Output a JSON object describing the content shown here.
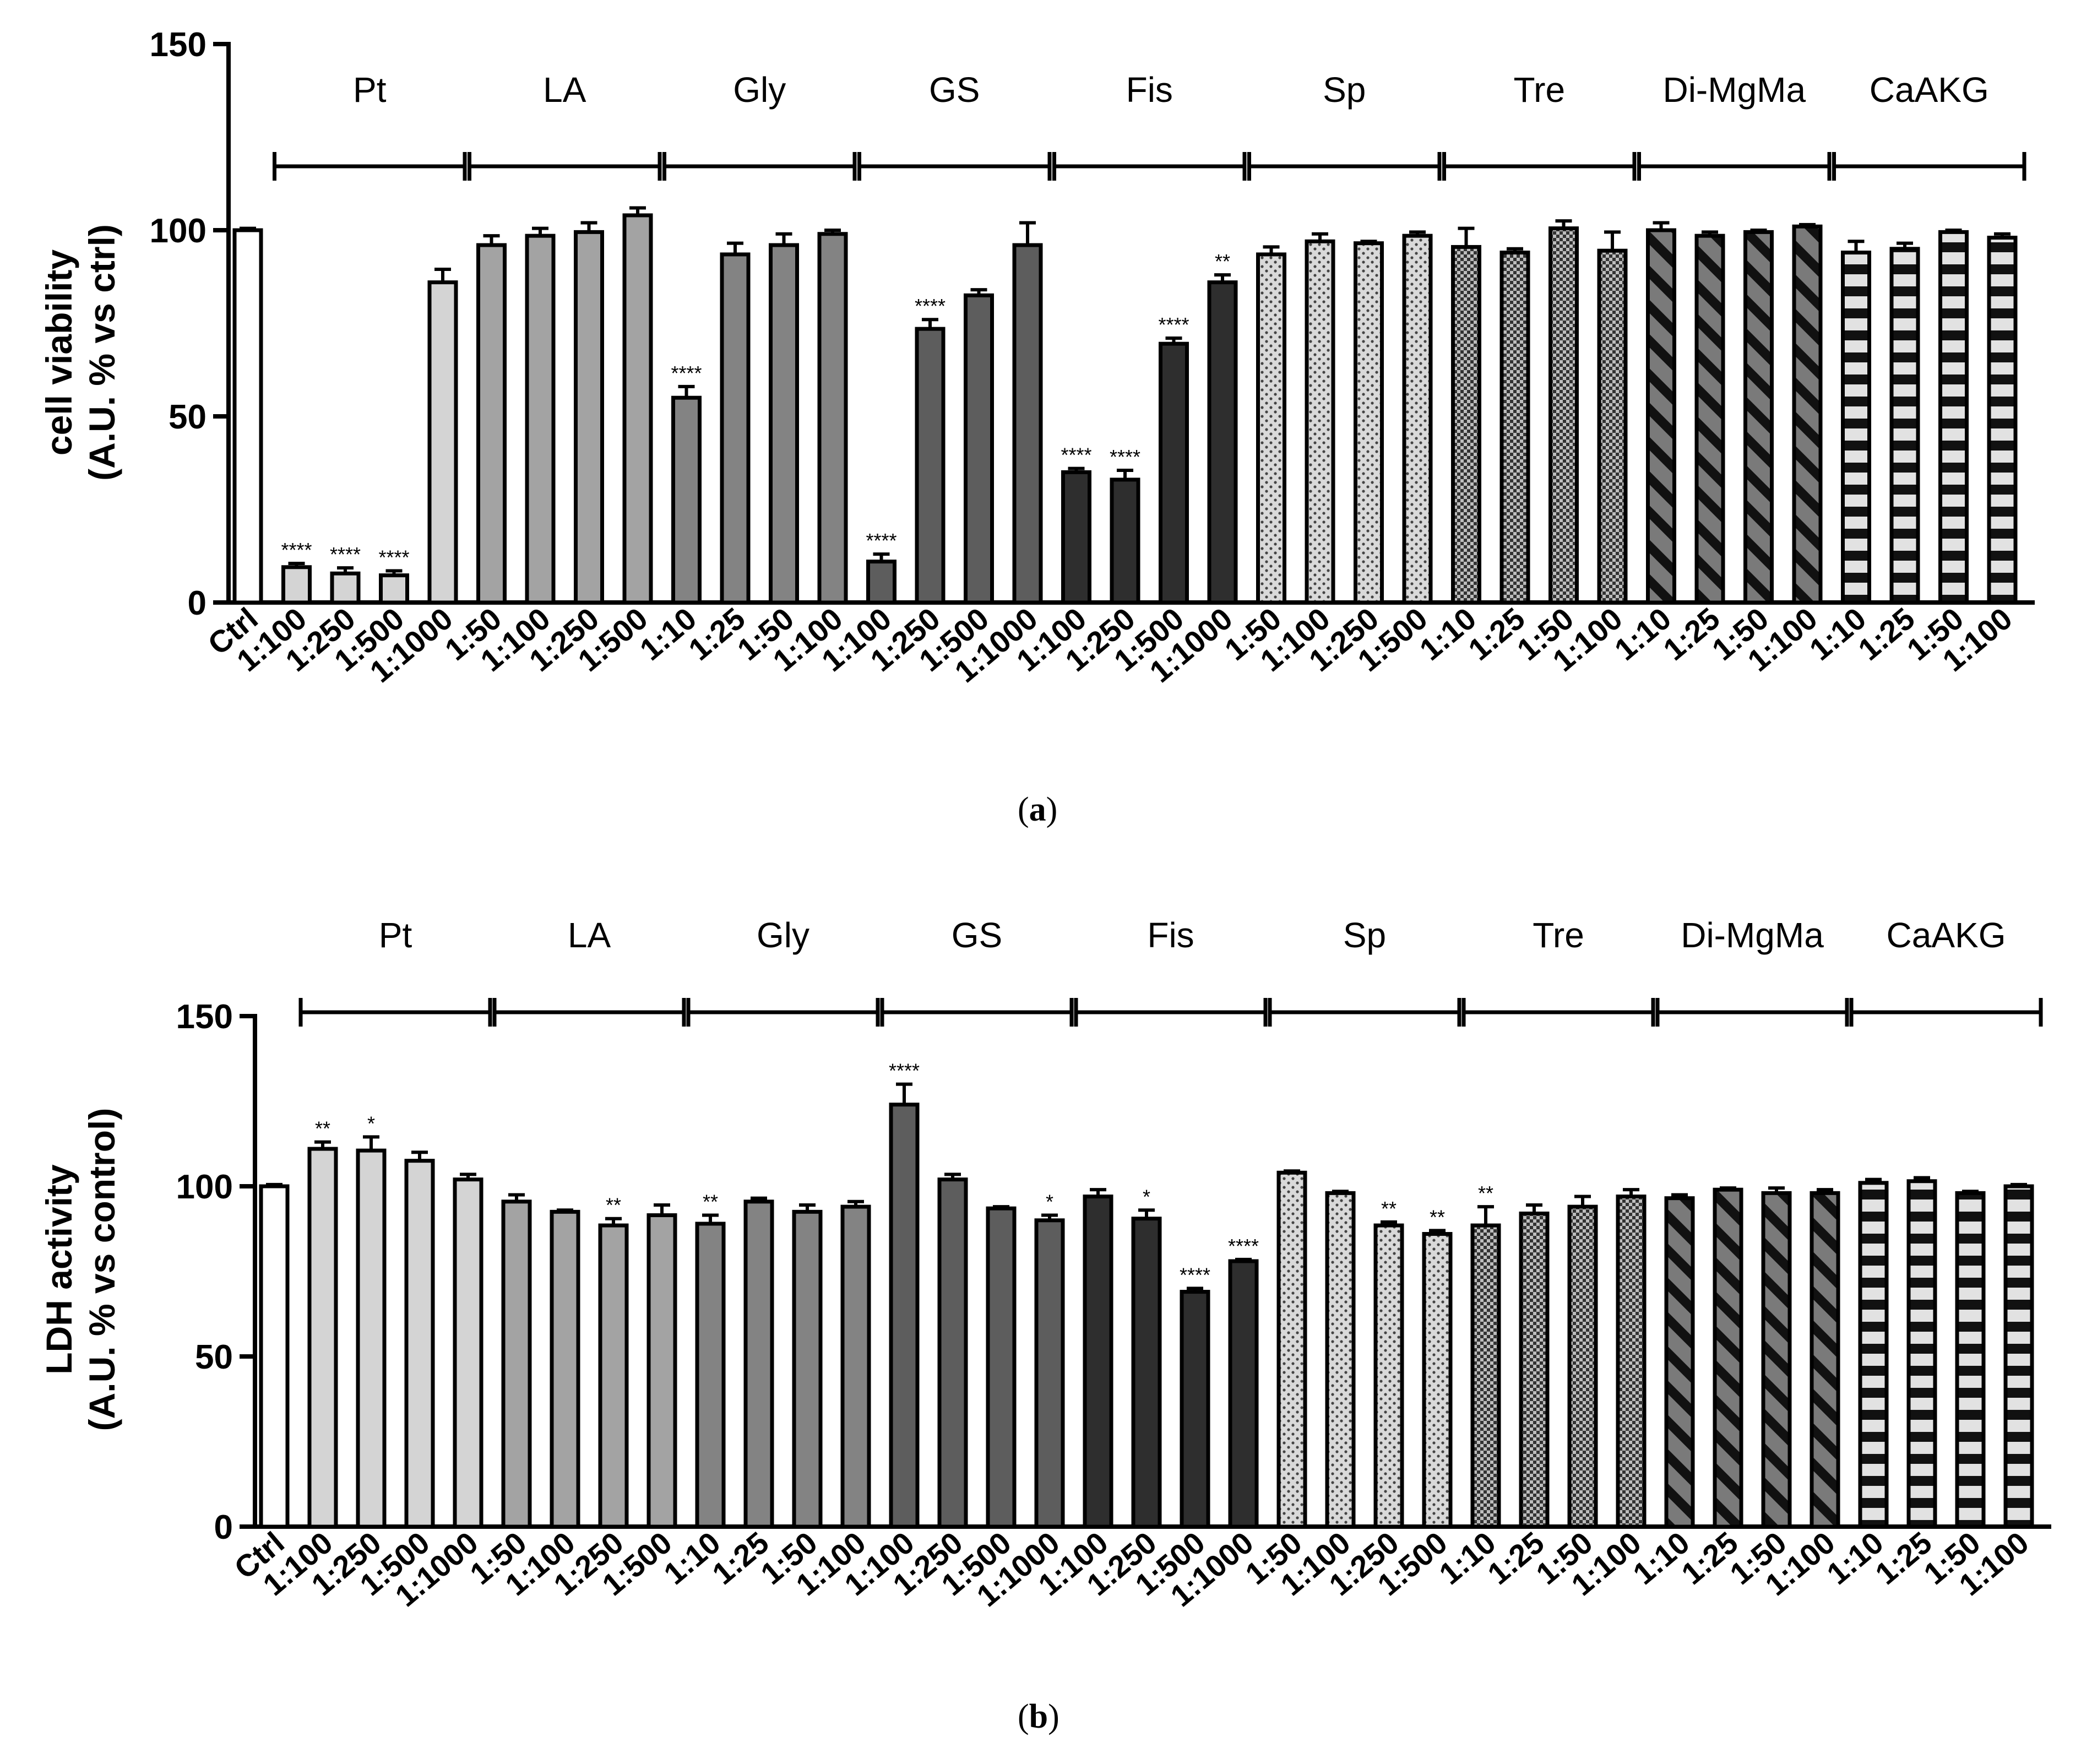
{
  "panel_labels": [
    {
      "open": "(",
      "letter": "a",
      "close": ")"
    },
    {
      "open": "(",
      "letter": "b",
      "close": ")"
    }
  ],
  "colors": {
    "ctrl": "#ffffff",
    "Pt": "#d4d4d4",
    "LA": "#a3a3a3",
    "Gly": "#838383",
    "GS": "#5d5d5d",
    "Fis": "#2e2e2e",
    "Sp": "#d9d9d9",
    "Tre": "#9a9a9a",
    "DiMgMa": "#7a7a7a",
    "CaAKG": "#e2e2e2",
    "outline": "#000000"
  },
  "chart_data": [
    {
      "type": "bar",
      "title": "",
      "xlabel": "",
      "ylabel": "cell viability\n(A.U. % vs ctrl)",
      "ylim": [
        0,
        150
      ],
      "yticks": [
        "0",
        "50",
        "100",
        "150"
      ],
      "ctrl": {
        "label": "Ctrl",
        "value": 100,
        "err": 0.5
      },
      "groups": [
        {
          "name": "Pt",
          "pattern": "solid",
          "bars": [
            {
              "label": "1:100",
              "value": 9.5,
              "err": 1.0,
              "sig": "****"
            },
            {
              "label": "1:250",
              "value": 7.8,
              "err": 1.5,
              "sig": "****"
            },
            {
              "label": "1:500",
              "value": 7.3,
              "err": 1.2,
              "sig": "****"
            },
            {
              "label": "1:1000",
              "value": 86,
              "err": 3.5,
              "sig": ""
            }
          ]
        },
        {
          "name": "LA",
          "pattern": "solid",
          "bars": [
            {
              "label": "1:50",
              "value": 96,
              "err": 2.5,
              "sig": ""
            },
            {
              "label": "1:100",
              "value": 98.5,
              "err": 2.0,
              "sig": ""
            },
            {
              "label": "1:250",
              "value": 99.5,
              "err": 2.5,
              "sig": ""
            },
            {
              "label": "1:500",
              "value": 104,
              "err": 2.0,
              "sig": ""
            }
          ]
        },
        {
          "name": "Gly",
          "pattern": "solid",
          "bars": [
            {
              "label": "1:10",
              "value": 55,
              "err": 3.0,
              "sig": "****"
            },
            {
              "label": "1:25",
              "value": 93.5,
              "err": 3.0,
              "sig": ""
            },
            {
              "label": "1:50",
              "value": 96,
              "err": 3.0,
              "sig": ""
            },
            {
              "label": "1:100",
              "value": 99,
              "err": 1.0,
              "sig": ""
            }
          ]
        },
        {
          "name": "GS",
          "pattern": "solid",
          "bars": [
            {
              "label": "1:100",
              "value": 11,
              "err": 2.0,
              "sig": "****"
            },
            {
              "label": "1:250",
              "value": 73.5,
              "err": 2.5,
              "sig": "****"
            },
            {
              "label": "1:500",
              "value": 82.5,
              "err": 1.5,
              "sig": ""
            },
            {
              "label": "1:1000",
              "value": 96,
              "err": 6.0,
              "sig": ""
            }
          ]
        },
        {
          "name": "Fis",
          "pattern": "solid",
          "bars": [
            {
              "label": "1:100",
              "value": 35,
              "err": 1.0,
              "sig": "****"
            },
            {
              "label": "1:250",
              "value": 33,
              "err": 2.5,
              "sig": "****"
            },
            {
              "label": "1:500",
              "value": 69.5,
              "err": 1.5,
              "sig": "****"
            },
            {
              "label": "1:1000",
              "value": 86,
              "err": 2.0,
              "sig": "**"
            }
          ]
        },
        {
          "name": "Sp",
          "pattern": "dots",
          "bars": [
            {
              "label": "1:50",
              "value": 93.5,
              "err": 2.0,
              "sig": ""
            },
            {
              "label": "1:100",
              "value": 97,
              "err": 2.0,
              "sig": ""
            },
            {
              "label": "1:250",
              "value": 96.5,
              "err": 0.5,
              "sig": ""
            },
            {
              "label": "1:500",
              "value": 98.5,
              "err": 1.0,
              "sig": ""
            }
          ]
        },
        {
          "name": "Tre",
          "pattern": "checker",
          "bars": [
            {
              "label": "1:10",
              "value": 95.5,
              "err": 5.0,
              "sig": ""
            },
            {
              "label": "1:25",
              "value": 94,
              "err": 1.0,
              "sig": ""
            },
            {
              "label": "1:50",
              "value": 100.5,
              "err": 2.0,
              "sig": ""
            },
            {
              "label": "1:100",
              "value": 94.5,
              "err": 5.0,
              "sig": ""
            }
          ]
        },
        {
          "name": "Di-MgMa",
          "pattern": "diag",
          "bars": [
            {
              "label": "1:10",
              "value": 100,
              "err": 2.0,
              "sig": ""
            },
            {
              "label": "1:25",
              "value": 98.5,
              "err": 1.0,
              "sig": ""
            },
            {
              "label": "1:50",
              "value": 99.5,
              "err": 0.5,
              "sig": ""
            },
            {
              "label": "1:100",
              "value": 101,
              "err": 0.5,
              "sig": ""
            }
          ]
        },
        {
          "name": "CaAKG",
          "pattern": "hstripe",
          "bars": [
            {
              "label": "1:10",
              "value": 94,
              "err": 3.0,
              "sig": ""
            },
            {
              "label": "1:25",
              "value": 95,
              "err": 1.5,
              "sig": ""
            },
            {
              "label": "1:50",
              "value": 99.5,
              "err": 0.5,
              "sig": ""
            },
            {
              "label": "1:100",
              "value": 98,
              "err": 1.0,
              "sig": ""
            }
          ]
        }
      ]
    },
    {
      "type": "bar",
      "title": "",
      "xlabel": "",
      "ylabel": "LDH activity\n(A.U. % vs control)",
      "ylim": [
        0,
        150
      ],
      "yticks": [
        "0",
        "50",
        "100",
        "150"
      ],
      "ctrl": {
        "label": "Ctrl",
        "value": 100,
        "err": 0.5
      },
      "groups": [
        {
          "name": "Pt",
          "pattern": "solid",
          "bars": [
            {
              "label": "1:100",
              "value": 111,
              "err": 2.0,
              "sig": "**"
            },
            {
              "label": "1:250",
              "value": 110.5,
              "err": 4.0,
              "sig": "*"
            },
            {
              "label": "1:500",
              "value": 107.5,
              "err": 2.5,
              "sig": ""
            },
            {
              "label": "1:1000",
              "value": 102,
              "err": 1.5,
              "sig": ""
            }
          ]
        },
        {
          "name": "LA",
          "pattern": "solid",
          "bars": [
            {
              "label": "1:50",
              "value": 95.5,
              "err": 2.0,
              "sig": ""
            },
            {
              "label": "1:100",
              "value": 92.5,
              "err": 0.5,
              "sig": ""
            },
            {
              "label": "1:250",
              "value": 88.5,
              "err": 2.0,
              "sig": "**"
            },
            {
              "label": "1:500",
              "value": 91.5,
              "err": 3.0,
              "sig": ""
            }
          ]
        },
        {
          "name": "Gly",
          "pattern": "solid",
          "bars": [
            {
              "label": "1:10",
              "value": 89,
              "err": 2.5,
              "sig": "**"
            },
            {
              "label": "1:25",
              "value": 95.5,
              "err": 1.0,
              "sig": ""
            },
            {
              "label": "1:50",
              "value": 92.5,
              "err": 2.0,
              "sig": ""
            },
            {
              "label": "1:100",
              "value": 94,
              "err": 1.5,
              "sig": ""
            }
          ]
        },
        {
          "name": "GS",
          "pattern": "solid",
          "bars": [
            {
              "label": "1:100",
              "value": 124,
              "err": 6.0,
              "sig": "****"
            },
            {
              "label": "1:250",
              "value": 102,
              "err": 1.5,
              "sig": ""
            },
            {
              "label": "1:500",
              "value": 93.5,
              "err": 0.5,
              "sig": ""
            },
            {
              "label": "1:1000",
              "value": 90,
              "err": 1.5,
              "sig": "*"
            }
          ]
        },
        {
          "name": "Fis",
          "pattern": "solid",
          "bars": [
            {
              "label": "1:100",
              "value": 97,
              "err": 2.0,
              "sig": ""
            },
            {
              "label": "1:250",
              "value": 90.5,
              "err": 2.5,
              "sig": "*"
            },
            {
              "label": "1:500",
              "value": 69,
              "err": 1.0,
              "sig": "****"
            },
            {
              "label": "1:1000",
              "value": 78,
              "err": 0.5,
              "sig": "****"
            }
          ]
        },
        {
          "name": "Sp",
          "pattern": "dots",
          "bars": [
            {
              "label": "1:50",
              "value": 104,
              "err": 0.5,
              "sig": ""
            },
            {
              "label": "1:100",
              "value": 98,
              "err": 0.5,
              "sig": ""
            },
            {
              "label": "1:250",
              "value": 88.5,
              "err": 1.0,
              "sig": "**"
            },
            {
              "label": "1:500",
              "value": 86,
              "err": 1.0,
              "sig": "**"
            }
          ]
        },
        {
          "name": "Tre",
          "pattern": "checker",
          "bars": [
            {
              "label": "1:10",
              "value": 88.5,
              "err": 5.5,
              "sig": "**"
            },
            {
              "label": "1:25",
              "value": 92,
              "err": 2.5,
              "sig": ""
            },
            {
              "label": "1:50",
              "value": 94,
              "err": 3.0,
              "sig": ""
            },
            {
              "label": "1:100",
              "value": 97,
              "err": 2.0,
              "sig": ""
            }
          ]
        },
        {
          "name": "Di-MgMa",
          "pattern": "diag",
          "bars": [
            {
              "label": "1:10",
              "value": 96.5,
              "err": 1.0,
              "sig": ""
            },
            {
              "label": "1:25",
              "value": 99,
              "err": 0.5,
              "sig": ""
            },
            {
              "label": "1:50",
              "value": 98,
              "err": 1.5,
              "sig": ""
            },
            {
              "label": "1:100",
              "value": 98,
              "err": 1.0,
              "sig": ""
            }
          ]
        },
        {
          "name": "CaAKG",
          "pattern": "hstripe",
          "bars": [
            {
              "label": "1:10",
              "value": 101,
              "err": 1.0,
              "sig": ""
            },
            {
              "label": "1:25",
              "value": 101.5,
              "err": 1.0,
              "sig": ""
            },
            {
              "label": "1:50",
              "value": 98,
              "err": 0.5,
              "sig": ""
            },
            {
              "label": "1:100",
              "value": 100,
              "err": 0.5,
              "sig": ""
            }
          ]
        }
      ]
    }
  ]
}
